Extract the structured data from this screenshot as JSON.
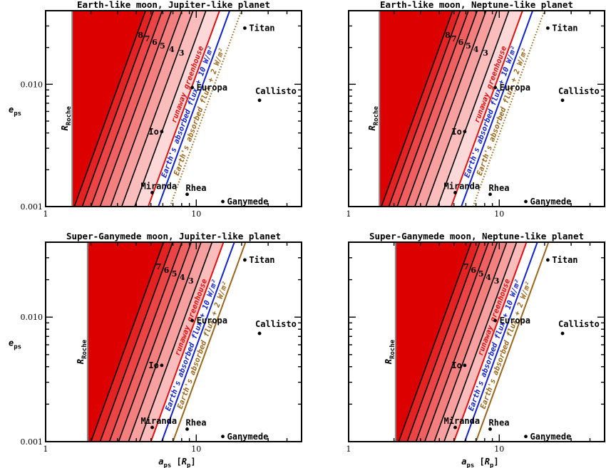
{
  "chart_data": [
    {
      "type": "line",
      "title": "Earth-like moon, Jupiter-like planet",
      "xlabel": "",
      "ylabel": "e_ps",
      "xscale": "log",
      "yscale": "log",
      "xlim": [
        1,
        50
      ],
      "ylim": [
        0.001,
        0.04
      ],
      "x_tick_labels": [
        "1",
        "10"
      ],
      "y_tick_labels": [
        "0.001",
        "0.010"
      ],
      "roche": {
        "label_main": "R",
        "label_sub": "Roche",
        "a": 1.5
      },
      "shading_lines": [
        {
          "label": "8",
          "a0": 1.55
        },
        {
          "label": "7",
          "a0": 1.75
        },
        {
          "label": "6",
          "a0": 2.0
        },
        {
          "label": "5",
          "a0": 2.3
        },
        {
          "label": "4",
          "a0": 2.7
        },
        {
          "label": "3",
          "a0": 3.2
        },
        {
          "label": "",
          "a0": 3.9
        }
      ],
      "limits": [
        {
          "label": "runaway greenhouse",
          "color": "#dd1111",
          "a0": 4.8
        },
        {
          "label": "Earth's absorbed flux + 10 W/m²",
          "color": "#1122cc",
          "a0": 5.6
        },
        {
          "label": "Earth's absorbed flux + 2 W/m²",
          "color": "#99661a",
          "a0": 6.7,
          "dotted": true
        }
      ],
      "moons": [
        {
          "name": "Titan",
          "a": 21.0,
          "e": 0.0288
        },
        {
          "name": "Europa",
          "a": 9.4,
          "e": 0.0094
        },
        {
          "name": "Callisto",
          "a": 26.3,
          "e": 0.0074
        },
        {
          "name": "Io",
          "a": 5.9,
          "e": 0.0041
        },
        {
          "name": "Miranda",
          "a": 5.1,
          "e": 0.0013
        },
        {
          "name": "Rhea",
          "a": 8.7,
          "e": 0.00126
        },
        {
          "name": "Ganymede",
          "a": 15.0,
          "e": 0.0011
        }
      ]
    },
    {
      "type": "line",
      "title": "Earth-like moon, Neptune-like planet",
      "xlabel": "",
      "ylabel": "",
      "xscale": "log",
      "yscale": "log",
      "xlim": [
        1,
        50
      ],
      "ylim": [
        0.001,
        0.04
      ],
      "x_tick_labels": [
        "1",
        "10"
      ],
      "y_tick_labels": [],
      "roche": {
        "label_main": "R",
        "label_sub": "Roche",
        "a": 1.6
      },
      "shading_lines": [
        {
          "label": "8",
          "a0": 1.65
        },
        {
          "label": "7",
          "a0": 1.85
        },
        {
          "label": "6",
          "a0": 2.1
        },
        {
          "label": "5",
          "a0": 2.4
        },
        {
          "label": "4",
          "a0": 2.75
        },
        {
          "label": "3",
          "a0": 3.25
        },
        {
          "label": "",
          "a0": 3.9
        }
      ],
      "limits": [
        {
          "label": "runaway greenhouse",
          "color": "#dd1111",
          "a0": 4.8
        },
        {
          "label": "Earth's absorbed flux + 10 W/m²",
          "color": "#1122cc",
          "a0": 5.6
        },
        {
          "label": "Earth's absorbed flux + 2 W/m²",
          "color": "#99661a",
          "a0": 6.7,
          "dotted": true
        }
      ],
      "moons": [
        {
          "name": "Titan",
          "a": 21.0,
          "e": 0.0288
        },
        {
          "name": "Europa",
          "a": 9.4,
          "e": 0.0094
        },
        {
          "name": "Callisto",
          "a": 26.3,
          "e": 0.0074
        },
        {
          "name": "Io",
          "a": 5.9,
          "e": 0.0041
        },
        {
          "name": "Miranda",
          "a": 5.1,
          "e": 0.0013
        },
        {
          "name": "Rhea",
          "a": 8.7,
          "e": 0.00126
        },
        {
          "name": "Ganymede",
          "a": 15.0,
          "e": 0.0011
        }
      ]
    },
    {
      "type": "line",
      "title": "Super-Ganymede moon, Jupiter-like planet",
      "xlabel": "a_ps [R_p]",
      "ylabel": "e_ps",
      "xscale": "log",
      "yscale": "log",
      "xlim": [
        1,
        50
      ],
      "ylim": [
        0.001,
        0.04
      ],
      "x_tick_labels": [
        "1",
        "10"
      ],
      "y_tick_labels": [
        "0.001",
        "0.010"
      ],
      "roche": {
        "label_main": "R",
        "label_sub": "Roche",
        "a": 1.9
      },
      "shading_lines": [
        {
          "label": "7",
          "a0": 2.0
        },
        {
          "label": "6",
          "a0": 2.3
        },
        {
          "label": "5",
          "a0": 2.65
        },
        {
          "label": "4",
          "a0": 3.05
        },
        {
          "label": "3",
          "a0": 3.55
        },
        {
          "label": "",
          "a0": 4.2
        }
      ],
      "limits": [
        {
          "label": "runaway greenhouse",
          "color": "#dd1111",
          "a0": 5.0
        },
        {
          "label": "Earth's absorbed flux + 10 W/m²",
          "color": "#1122cc",
          "a0": 5.9
        },
        {
          "label": "Earth's absorbed flux + 2 W/m²",
          "color": "#99661a",
          "a0": 7.0,
          "dotted": false
        }
      ],
      "moons": [
        {
          "name": "Titan",
          "a": 21.0,
          "e": 0.0288
        },
        {
          "name": "Europa",
          "a": 9.4,
          "e": 0.0094
        },
        {
          "name": "Callisto",
          "a": 26.3,
          "e": 0.0074
        },
        {
          "name": "Io",
          "a": 5.9,
          "e": 0.0041
        },
        {
          "name": "Miranda",
          "a": 5.1,
          "e": 0.0013
        },
        {
          "name": "Rhea",
          "a": 8.7,
          "e": 0.00126
        },
        {
          "name": "Ganymede",
          "a": 15.0,
          "e": 0.0011
        }
      ]
    },
    {
      "type": "line",
      "title": "Super-Ganymede moon, Neptune-like planet",
      "xlabel": "a_ps [R_p]",
      "ylabel": "",
      "xscale": "log",
      "yscale": "log",
      "xlim": [
        1,
        50
      ],
      "ylim": [
        0.001,
        0.04
      ],
      "x_tick_labels": [
        "1",
        "10"
      ],
      "y_tick_labels": [],
      "roche": {
        "label_main": "R",
        "label_sub": "Roche",
        "a": 2.05
      },
      "shading_lines": [
        {
          "label": "7",
          "a0": 2.15
        },
        {
          "label": "6",
          "a0": 2.45
        },
        {
          "label": "5",
          "a0": 2.8
        },
        {
          "label": "4",
          "a0": 3.2
        },
        {
          "label": "3",
          "a0": 3.7
        },
        {
          "label": "",
          "a0": 4.3
        }
      ],
      "limits": [
        {
          "label": "runaway greenhouse",
          "color": "#dd1111",
          "a0": 5.0
        },
        {
          "label": "Earth's absorbed flux + 10 W/m²",
          "color": "#1122cc",
          "a0": 5.9
        },
        {
          "label": "Earth's absorbed flux + 2 W/m²",
          "color": "#99661a",
          "a0": 7.0,
          "dotted": false
        }
      ],
      "moons": [
        {
          "name": "Titan",
          "a": 21.0,
          "e": 0.0288
        },
        {
          "name": "Europa",
          "a": 9.4,
          "e": 0.0094
        },
        {
          "name": "Callisto",
          "a": 26.3,
          "e": 0.0074
        },
        {
          "name": "Io",
          "a": 5.9,
          "e": 0.0041
        },
        {
          "name": "Miranda",
          "a": 5.1,
          "e": 0.0013
        },
        {
          "name": "Rhea",
          "a": 8.7,
          "e": 0.00126
        },
        {
          "name": "Ganymede",
          "a": 15.0,
          "e": 0.0011
        }
      ]
    }
  ]
}
